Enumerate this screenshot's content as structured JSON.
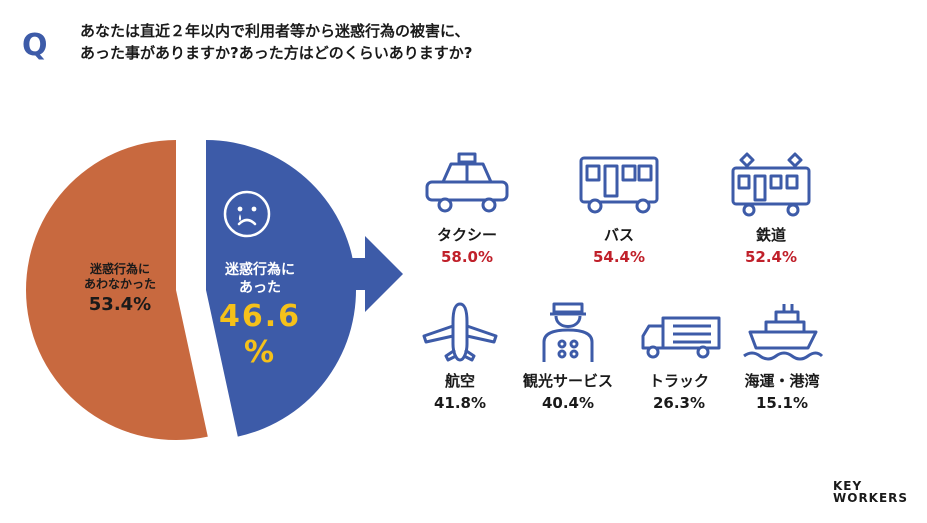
{
  "question": {
    "mark": "Q",
    "line1": "あなたは直近２年以内で利用者等から迷惑行為の被害に、",
    "line2": "あった事がありますか?あった方はどのくらいありますか?"
  },
  "colors": {
    "accent_blue": "#3d5ba8",
    "orange": "#c8693f",
    "highlight_yellow": "#f5c11a",
    "value_red": "#c0202a",
    "arrow": "#3d5ba8"
  },
  "chart_data": [
    {
      "type": "pie",
      "slices": [
        {
          "label_line1": "迷惑行為に",
          "label_line2": "あった",
          "value": 46.6,
          "value_text": "46.6",
          "unit": "%",
          "color": "#3d5ba8"
        },
        {
          "label_line1": "迷惑行為に",
          "label_line2": "あわなかった",
          "value": 53.4,
          "value_text": "53.4%",
          "color": "#c8693f"
        }
      ]
    },
    {
      "type": "table",
      "categories": [
        {
          "name": "タクシー",
          "value": 58.0,
          "value_text": "58.0%",
          "icon": "taxi-icon",
          "color": "#c0202a"
        },
        {
          "name": "バス",
          "value": 54.4,
          "value_text": "54.4%",
          "icon": "bus-icon",
          "color": "#c0202a"
        },
        {
          "name": "鉄道",
          "value": 52.4,
          "value_text": "52.4%",
          "icon": "train-icon",
          "color": "#c0202a"
        },
        {
          "name": "航空",
          "value": 41.8,
          "value_text": "41.8%",
          "icon": "airplane-icon",
          "color": "#1a1a1a"
        },
        {
          "name": "観光サービス",
          "value": 40.4,
          "value_text": "40.4%",
          "icon": "tour-guide-icon",
          "color": "#1a1a1a"
        },
        {
          "name": "トラック",
          "value": 26.3,
          "value_text": "26.3%",
          "icon": "truck-icon",
          "color": "#1a1a1a"
        },
        {
          "name": "海運・港湾",
          "value": 15.1,
          "value_text": "15.1%",
          "icon": "ship-icon",
          "color": "#1a1a1a"
        }
      ]
    }
  ],
  "logo": {
    "line1": "KEY",
    "line2": "WORKERS"
  }
}
